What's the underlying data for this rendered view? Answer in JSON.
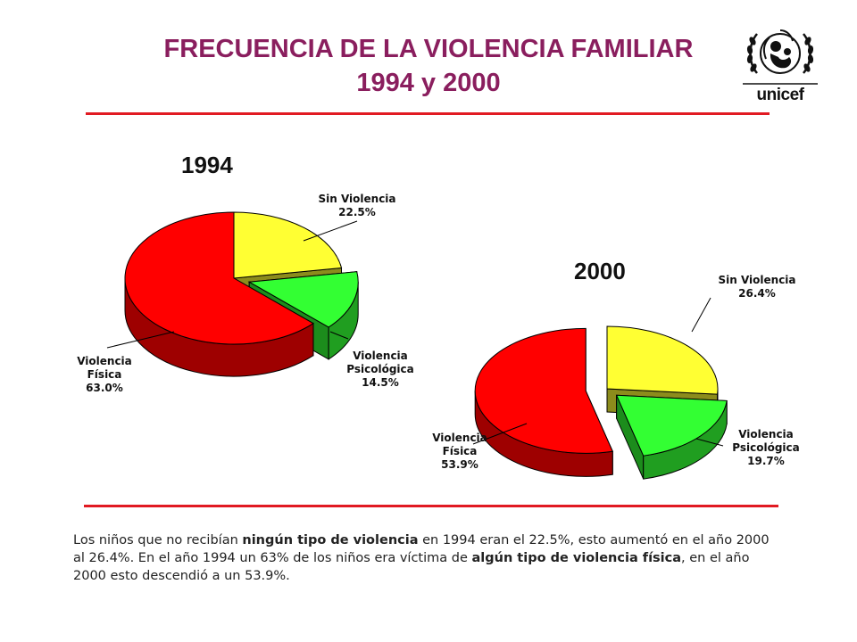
{
  "header": {
    "title_line1": "FRECUENCIA DE LA VIOLENCIA FAMILIAR",
    "title_line2": "1994 y 2000",
    "logo_text": "unicef",
    "title_color": "#8a1e5e",
    "rule_color": "#e11a22"
  },
  "chart_data": [
    {
      "type": "pie",
      "title": "1994",
      "categories": [
        "Sin Violencia",
        "Violencia Psicológica",
        "Violencia Física"
      ],
      "values": [
        22.5,
        14.5,
        63.0
      ],
      "value_labels": [
        "22.5%",
        "14.5%",
        "63.0%"
      ],
      "colors": [
        "#ffff33",
        "#33ff33",
        "#ff0000"
      ],
      "label_lines": [
        [
          "Sin Violencia",
          "22.5%"
        ],
        [
          "Violencia",
          "Psicológica",
          "14.5%"
        ],
        [
          "Violencia",
          "Física",
          "63.0%"
        ]
      ]
    },
    {
      "type": "pie",
      "title": "2000",
      "categories": [
        "Sin Violencia",
        "Violencia Psicológica",
        "Violencia Física"
      ],
      "values": [
        26.4,
        19.7,
        53.9
      ],
      "value_labels": [
        "26.4%",
        "19.7%",
        "53.9%"
      ],
      "colors": [
        "#ffff33",
        "#33ff33",
        "#ff0000"
      ],
      "label_lines": [
        [
          "Sin Violencia",
          "26.4%"
        ],
        [
          "Violencia",
          "Psicológica",
          "19.7%"
        ],
        [
          "Violencia",
          "Física",
          "53.9%"
        ]
      ]
    }
  ],
  "caption": {
    "p1": "Los niños que no recibían ",
    "b1": "ningún tipo de violencia",
    "p2": " en 1994 eran el 22.5%, esto aumentó en el año 2000 al 26.4%. En el año 1994 un 63% de los niños era víctima de ",
    "b2": "algún tipo de violencia física",
    "p3": ", en el año 2000 esto descendió a un 53.9%."
  }
}
